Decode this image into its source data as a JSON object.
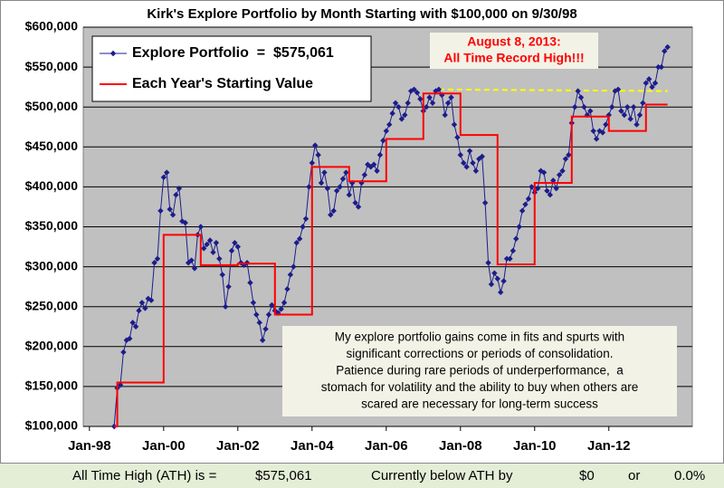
{
  "chart_data": {
    "type": "line",
    "title": "Kirk's Explore Portfolio by Month Starting with $100,000 on 9/30/98",
    "xlim": [
      "1997-11",
      "2014-04"
    ],
    "xticks": [
      {
        "value": "1998-01",
        "label": "Jan-98"
      },
      {
        "value": "2000-01",
        "label": "Jan-00"
      },
      {
        "value": "2002-01",
        "label": "Jan-02"
      },
      {
        "value": "2004-01",
        "label": "Jan-04"
      },
      {
        "value": "2006-01",
        "label": "Jan-06"
      },
      {
        "value": "2008-01",
        "label": "Jan-08"
      },
      {
        "value": "2010-01",
        "label": "Jan-10"
      },
      {
        "value": "2012-01",
        "label": "Jan-12"
      }
    ],
    "ylim": [
      100000,
      600000
    ],
    "yticks": [
      {
        "value": 100000,
        "label": "$100,000"
      },
      {
        "value": 150000,
        "label": "$150,000"
      },
      {
        "value": 200000,
        "label": "$200,000"
      },
      {
        "value": 250000,
        "label": "$250,000"
      },
      {
        "value": 300000,
        "label": "$300,000"
      },
      {
        "value": 350000,
        "label": "$350,000"
      },
      {
        "value": 400000,
        "label": "$400,000"
      },
      {
        "value": 450000,
        "label": "$450,000"
      },
      {
        "value": 500000,
        "label": "$500,000"
      },
      {
        "value": 550000,
        "label": "$550,000"
      },
      {
        "value": 600000,
        "label": "$600,000"
      }
    ],
    "grid": true,
    "legend": "top-left",
    "series": [
      {
        "name": "Explore Portfolio  =  $575,061",
        "color": "#1c1c8c",
        "marker": "diamond",
        "start": "1998-09",
        "values": [
          100000,
          148000,
          152000,
          193000,
          208000,
          210000,
          230000,
          225000,
          245000,
          255000,
          248000,
          260000,
          258000,
          305000,
          310000,
          370000,
          412000,
          418000,
          372000,
          365000,
          390000,
          398000,
          357000,
          355000,
          305000,
          308000,
          298000,
          340000,
          350000,
          323000,
          328000,
          333000,
          318000,
          330000,
          310000,
          290000,
          250000,
          275000,
          320000,
          330000,
          325000,
          305000,
          302000,
          305000,
          280000,
          255000,
          240000,
          230000,
          208000,
          222000,
          240000,
          252000,
          245000,
          242000,
          247000,
          255000,
          272000,
          290000,
          300000,
          330000,
          335000,
          350000,
          360000,
          400000,
          430000,
          452000,
          440000,
          405000,
          418000,
          398000,
          365000,
          370000,
          395000,
          400000,
          410000,
          418000,
          390000,
          405000,
          380000,
          375000,
          405000,
          415000,
          428000,
          425000,
          428000,
          420000,
          440000,
          458000,
          470000,
          478000,
          492000,
          505000,
          500000,
          485000,
          490000,
          505000,
          520000,
          522000,
          518000,
          510000,
          495000,
          500000,
          512000,
          505000,
          520000,
          522000,
          515000,
          490000,
          505000,
          512000,
          478000,
          462000,
          440000,
          430000,
          425000,
          445000,
          430000,
          420000,
          435000,
          438000,
          380000,
          305000,
          278000,
          292000,
          285000,
          268000,
          282000,
          310000,
          310000,
          320000,
          335000,
          350000,
          370000,
          378000,
          385000,
          400000,
          393000,
          398000,
          420000,
          418000,
          395000,
          390000,
          408000,
          398000,
          415000,
          420000,
          435000,
          440000,
          480000,
          500000,
          520000,
          512000,
          500000,
          490000,
          495000,
          470000,
          460000,
          470000,
          468000,
          478000,
          490000,
          500000,
          520000,
          522000,
          495000,
          490000,
          500000,
          485000,
          500000,
          478000,
          490000,
          505000,
          530000,
          535000,
          525000,
          530000,
          550000,
          550000,
          570000,
          575061
        ]
      },
      {
        "name": "Each Year's Starting Value",
        "color": "#ff0000",
        "step": true,
        "x": [
          "1998-09",
          "1998-10",
          "2000-01",
          "2001-01",
          "2002-01",
          "2003-01",
          "2004-01",
          "2005-01",
          "2006-01",
          "2007-01",
          "2008-01",
          "2009-01",
          "2010-01",
          "2011-01",
          "2012-01",
          "2013-01",
          "2013-08"
        ],
        "values": [
          100000,
          155000,
          340000,
          302000,
          304000,
          240000,
          425000,
          407000,
          460000,
          517000,
          465000,
          303000,
          405000,
          488000,
          470000,
          503000,
          503000
        ]
      }
    ],
    "reference_line": {
      "color": "#ffff00",
      "x": [
        "2007-06",
        "2013-08"
      ],
      "values": [
        522000,
        520000
      ]
    },
    "annotations": {
      "record": [
        "August 8, 2013:",
        "All Time Record High!!!"
      ],
      "note": [
        "My explore portfolio gains come in fits and spurts with",
        "significant corrections or periods of consolidation.",
        "Patience during rare periods of underperformance,  a",
        "stomach for volatility and the ability to buy when others are",
        "scared are necessary for long-term success"
      ]
    }
  },
  "footer": {
    "ath_label": "All Time High (ATH) is =",
    "ath_value": "$575,061",
    "below_label": "Currently below ATH by",
    "below_value": "$0",
    "or": "or",
    "below_pct": "0.0%"
  }
}
